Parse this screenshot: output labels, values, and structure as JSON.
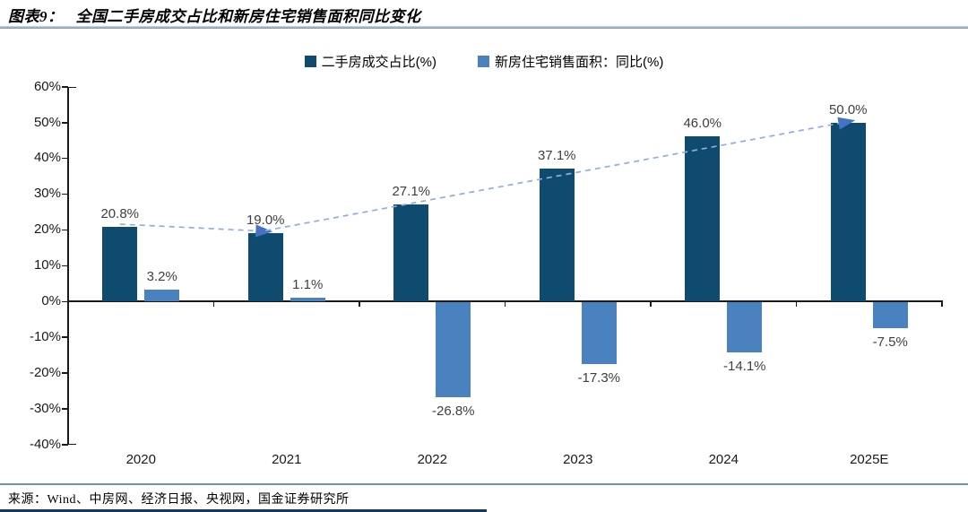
{
  "figure": {
    "label": "图表9：",
    "title": "全国二手房成交占比和新房住宅销售面积同比变化",
    "source": "来源：Wind、中房网、经济日报、央视网，国金证券研究所"
  },
  "colors": {
    "series1": "#0e4b6e",
    "series2": "#4a82c0",
    "trend_dash": "#93acdf",
    "trend_arrow": "#4472c4",
    "axis": "#1a1a1a",
    "data_label": "#3f3f3f",
    "title_rule": "#6e93ac",
    "bottom_bar": "#17375e"
  },
  "chart_data": {
    "type": "bar",
    "title": "全国二手房成交占比和新房住宅销售面积同比变化",
    "categories": [
      "2020",
      "2021",
      "2022",
      "2023",
      "2024",
      "2025E"
    ],
    "series": [
      {
        "name": "二手房成交占比(%)",
        "color_key": "series1",
        "values": [
          20.8,
          19.0,
          27.1,
          37.1,
          46.0,
          50.0
        ],
        "labels": [
          "20.8%",
          "19.0%",
          "27.1%",
          "37.1%",
          "46.0%",
          "50.0%"
        ]
      },
      {
        "name": "新房住宅销售面积：同比(%)",
        "color_key": "series2",
        "values": [
          3.2,
          1.1,
          -26.8,
          -17.3,
          -14.1,
          -7.5
        ],
        "labels": [
          "3.2%",
          "1.1%",
          "-26.8%",
          "-17.3%",
          "-14.1%",
          "-7.5%"
        ]
      }
    ],
    "ylim": [
      -40,
      60
    ],
    "ytick_step": 10,
    "ytick_suffix": "%",
    "grid": false,
    "legend_position": "top-center",
    "annotations": [
      {
        "type": "dashed-arrow",
        "series": 0,
        "from_category": 0,
        "to_category": 1
      },
      {
        "type": "dashed-arrow",
        "series": 0,
        "from_category": 1,
        "to_category": 5
      }
    ]
  }
}
